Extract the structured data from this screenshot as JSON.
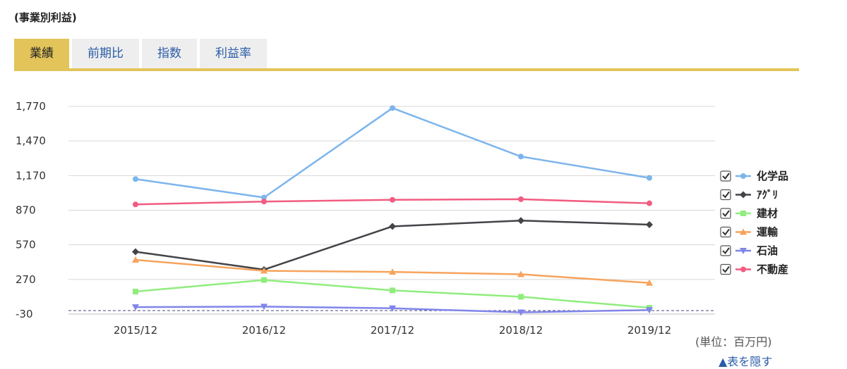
{
  "section_title": "(事業別利益)",
  "tabs": [
    {
      "label": "業績",
      "active": true
    },
    {
      "label": "前期比",
      "active": false
    },
    {
      "label": "指数",
      "active": false
    },
    {
      "label": "利益率",
      "active": false
    }
  ],
  "colors": {
    "tab_active": "#e2c45a",
    "tab_inactive": "#eeeeee",
    "link": "#2a5ca8"
  },
  "unit_label": "(単位：百万円)",
  "table_link": "▲表を隠す",
  "chart_data": {
    "type": "line",
    "categories": [
      "2015/12",
      "2016/12",
      "2017/12",
      "2018/12",
      "2019/12"
    ],
    "y_ticks": [
      "1,770",
      "1,470",
      "1,170",
      "870",
      "570",
      "270",
      "-30"
    ],
    "ylim": [
      -30,
      1770
    ],
    "grid": true,
    "legend_position": "right",
    "series": [
      {
        "name": "化学品",
        "color": "#7cb5ec",
        "marker": "circle",
        "values": [
          1140,
          980,
          1755,
          1335,
          1150
        ]
      },
      {
        "name": "ｱｸﾞﾘ",
        "color": "#434348",
        "marker": "diamond",
        "values": [
          510,
          355,
          730,
          780,
          745
        ]
      },
      {
        "name": "建材",
        "color": "#90ed7d",
        "marker": "square",
        "values": [
          165,
          265,
          175,
          120,
          25
        ]
      },
      {
        "name": "運輸",
        "color": "#f7a35c",
        "marker": "triangle",
        "values": [
          440,
          345,
          335,
          315,
          240
        ]
      },
      {
        "name": "石油",
        "color": "#8085e9",
        "marker": "triangle-down",
        "values": [
          30,
          35,
          20,
          -15,
          5
        ]
      },
      {
        "name": "不動産",
        "color": "#f15c80",
        "marker": "circle",
        "values": [
          920,
          945,
          960,
          965,
          930
        ]
      }
    ]
  }
}
